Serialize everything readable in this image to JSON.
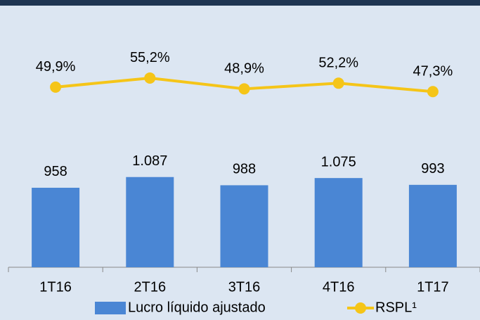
{
  "chart_data": {
    "type": "bar",
    "categories": [
      "1T16",
      "2T16",
      "3T16",
      "4T16",
      "1T17"
    ],
    "series": [
      {
        "name": "Lucro líquido ajustado",
        "color": "#4a86d4",
        "type": "bar",
        "values": [
          958,
          1087,
          988,
          1075,
          993
        ],
        "value_labels": [
          "958",
          "1.087",
          "988",
          "1.075",
          "993"
        ]
      },
      {
        "name": "RSPL¹",
        "color": "#f5c518",
        "type": "line",
        "axis": "y2",
        "values": [
          49.9,
          55.2,
          48.9,
          52.2,
          47.3
        ],
        "value_labels": [
          "49,9%",
          "55,2%",
          "48,9%",
          "52,2%",
          "47,3%"
        ]
      }
    ],
    "ylim": [
      0,
      3000
    ],
    "y2lim": [
      -55,
      90
    ],
    "legend": "bottom"
  }
}
